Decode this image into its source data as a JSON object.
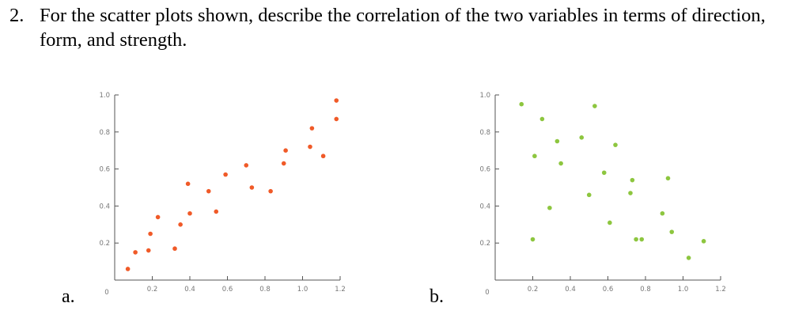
{
  "question": {
    "number": "2.",
    "line1": "For the scatter plots shown, describe the correlation of the two variables in terms of direction,",
    "line2": "form, and strength."
  },
  "chart_data": [
    {
      "type": "scatter",
      "label": "a.",
      "color": "#f05a28",
      "xlim": [
        0,
        1.2
      ],
      "ylim": [
        0,
        1.0
      ],
      "xticks": [
        {
          "v": 0,
          "t": "0"
        },
        {
          "v": 0.2,
          "t": "0.2"
        },
        {
          "v": 0.4,
          "t": "0.4"
        },
        {
          "v": 0.6,
          "t": "0.6"
        },
        {
          "v": 0.8,
          "t": "0.8"
        },
        {
          "v": 1.0,
          "t": "1.0"
        },
        {
          "v": 1.2,
          "t": "1.2"
        }
      ],
      "yticks": [
        {
          "v": 0.2,
          "t": "0.2"
        },
        {
          "v": 0.4,
          "t": "0.4"
        },
        {
          "v": 0.6,
          "t": "0.6"
        },
        {
          "v": 0.8,
          "t": "0.8"
        },
        {
          "v": 1.0,
          "t": "1.0"
        }
      ],
      "points": [
        [
          0.07,
          0.06
        ],
        [
          0.11,
          0.15
        ],
        [
          0.18,
          0.16
        ],
        [
          0.19,
          0.25
        ],
        [
          0.23,
          0.34
        ],
        [
          0.32,
          0.17
        ],
        [
          0.35,
          0.3
        ],
        [
          0.39,
          0.52
        ],
        [
          0.4,
          0.36
        ],
        [
          0.5,
          0.48
        ],
        [
          0.54,
          0.37
        ],
        [
          0.59,
          0.57
        ],
        [
          0.7,
          0.62
        ],
        [
          0.73,
          0.5
        ],
        [
          0.83,
          0.48
        ],
        [
          0.9,
          0.63
        ],
        [
          0.91,
          0.7
        ],
        [
          1.04,
          0.72
        ],
        [
          1.05,
          0.82
        ],
        [
          1.11,
          0.67
        ],
        [
          1.18,
          0.87
        ],
        [
          1.18,
          0.97
        ]
      ]
    },
    {
      "type": "scatter",
      "label": "b.",
      "color": "#8dc63f",
      "xlim": [
        0,
        1.2
      ],
      "ylim": [
        0,
        1.0
      ],
      "xticks": [
        {
          "v": 0,
          "t": "0"
        },
        {
          "v": 0.2,
          "t": "0.2"
        },
        {
          "v": 0.4,
          "t": "0.4"
        },
        {
          "v": 0.6,
          "t": "0.6"
        },
        {
          "v": 0.8,
          "t": "0.8"
        },
        {
          "v": 1.0,
          "t": "1.0"
        },
        {
          "v": 1.2,
          "t": "1.2"
        }
      ],
      "yticks": [
        {
          "v": 0.2,
          "t": "0.2"
        },
        {
          "v": 0.4,
          "t": "0.4"
        },
        {
          "v": 0.6,
          "t": "0.6"
        },
        {
          "v": 0.8,
          "t": "0.8"
        },
        {
          "v": 1.0,
          "t": "1.0"
        }
      ],
      "points": [
        [
          0.14,
          0.95
        ],
        [
          0.2,
          0.22
        ],
        [
          0.21,
          0.67
        ],
        [
          0.25,
          0.87
        ],
        [
          0.29,
          0.39
        ],
        [
          0.33,
          0.75
        ],
        [
          0.35,
          0.63
        ],
        [
          0.46,
          0.77
        ],
        [
          0.5,
          0.46
        ],
        [
          0.53,
          0.94
        ],
        [
          0.58,
          0.58
        ],
        [
          0.61,
          0.31
        ],
        [
          0.64,
          0.73
        ],
        [
          0.72,
          0.47
        ],
        [
          0.73,
          0.54
        ],
        [
          0.75,
          0.22
        ],
        [
          0.78,
          0.22
        ],
        [
          0.89,
          0.36
        ],
        [
          0.92,
          0.55
        ],
        [
          0.94,
          0.26
        ],
        [
          1.03,
          0.12
        ],
        [
          1.11,
          0.21
        ]
      ]
    }
  ]
}
